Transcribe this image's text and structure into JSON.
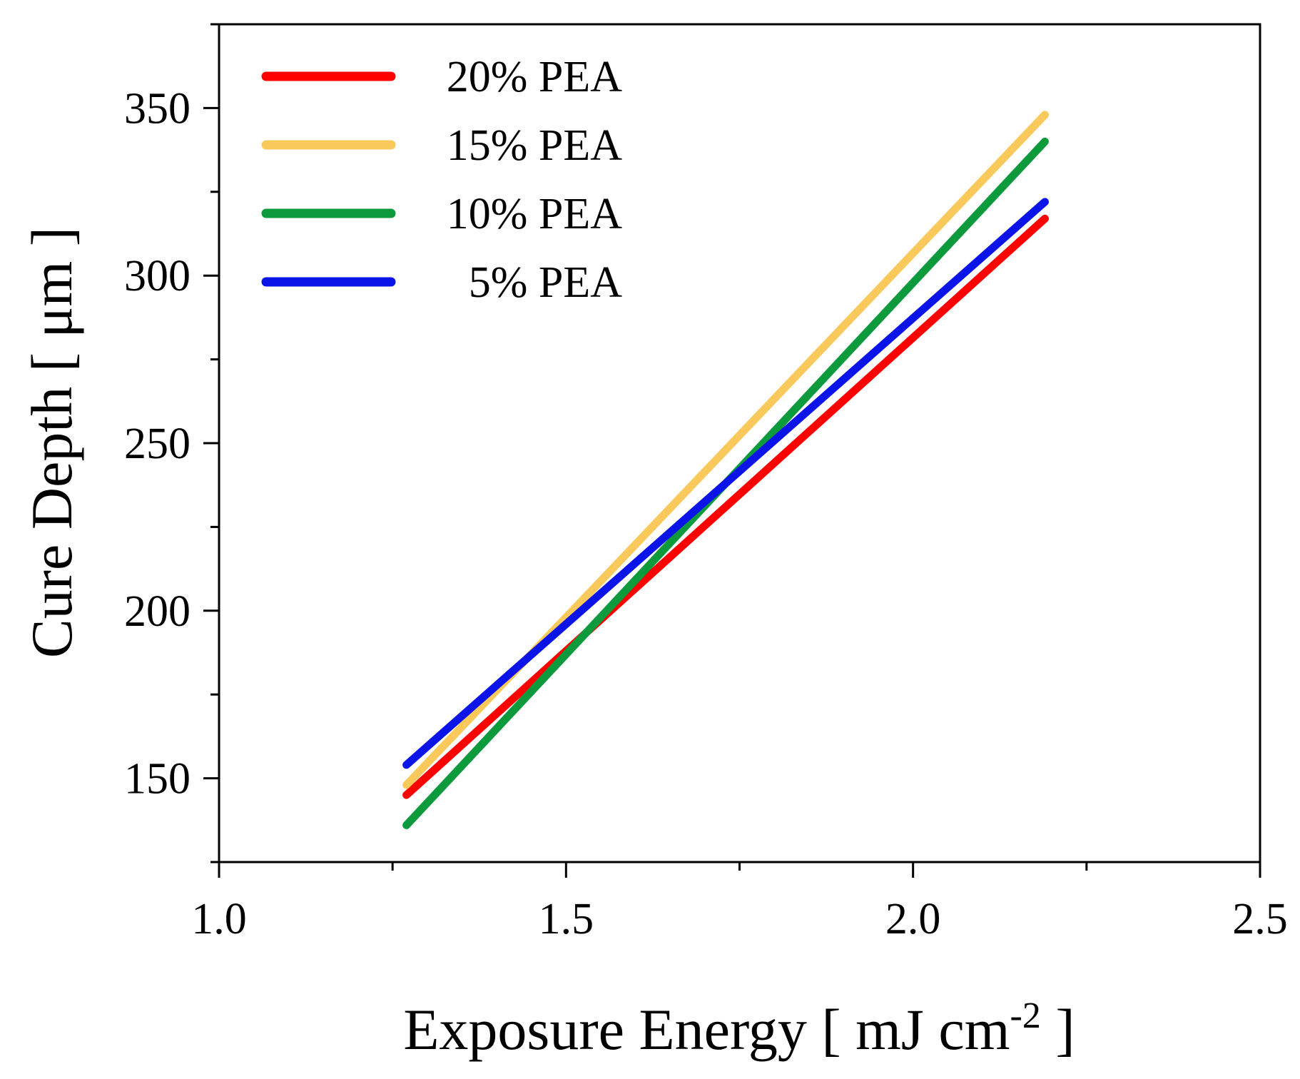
{
  "chart_data": {
    "type": "line",
    "xlabel": "Exposure Energy [ mJ cm",
    "xlabel_superscript": "-2",
    "xlabel_suffix": " ]",
    "ylabel": "Cure Depth [ μm ]",
    "xlim": [
      1.0,
      2.5
    ],
    "ylim": [
      125,
      375
    ],
    "x_ticks": [
      "1.0",
      "1.5",
      "2.0",
      "2.5"
    ],
    "y_ticks": [
      "150",
      "200",
      "250",
      "300",
      "350"
    ],
    "grid": false,
    "legend_position": "top-left",
    "series": [
      {
        "name": "20% PEA",
        "color": "#ff0000",
        "x": [
          1.27,
          2.19
        ],
        "y": [
          145,
          317
        ]
      },
      {
        "name": "15% PEA",
        "color": "#f9c95b",
        "x": [
          1.27,
          2.19
        ],
        "y": [
          148,
          348
        ]
      },
      {
        "name": "10% PEA",
        "color": "#0d9a3c",
        "x": [
          1.27,
          2.19
        ],
        "y": [
          136,
          340
        ]
      },
      {
        "name": "5% PEA",
        "color": "#0a14e8",
        "x": [
          1.27,
          2.19
        ],
        "y": [
          154,
          322
        ]
      }
    ]
  }
}
